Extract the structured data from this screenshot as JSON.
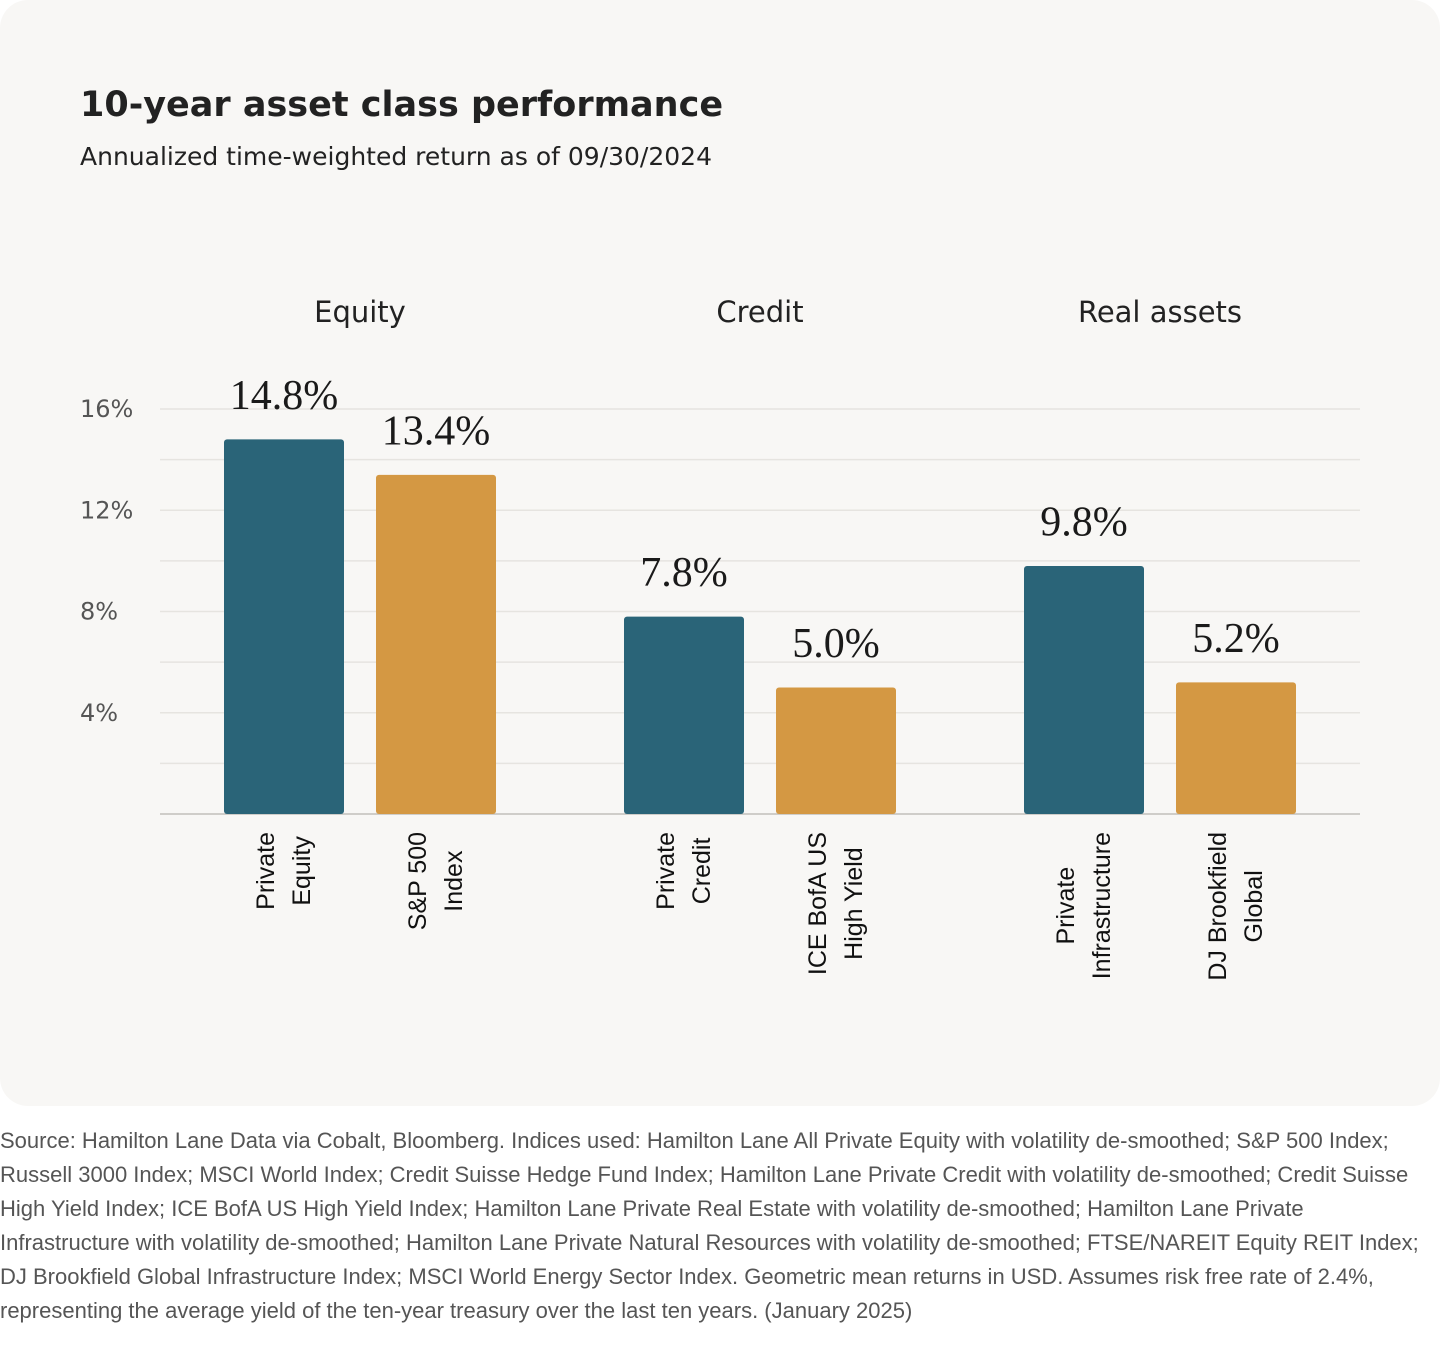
{
  "chart_data": {
    "type": "bar",
    "title": "10-year asset class performance",
    "subtitle": "Annualized time-weighted return as of 09/30/2024",
    "groups": [
      {
        "name": "Equity",
        "categories": [
          "Private\nEquity",
          "S&P 500\nIndex"
        ],
        "values": [
          14.8,
          13.4
        ],
        "value_labels": [
          "14.8%",
          "13.4%"
        ]
      },
      {
        "name": "Credit",
        "categories": [
          "Private\nCredit",
          "ICE BofA US\nHigh Yield"
        ],
        "values": [
          7.8,
          5.0
        ],
        "value_labels": [
          "7.8%",
          "5.0%"
        ]
      },
      {
        "name": "Real assets",
        "categories": [
          "Private\nInfrastructure",
          "DJ Brookfield\nGlobal"
        ],
        "values": [
          9.8,
          5.2
        ],
        "value_labels": [
          "9.8%",
          "5.2%"
        ]
      }
    ],
    "colors": [
      "#2a6478",
      "#d49843"
    ],
    "ylim": [
      0,
      16
    ],
    "yticks": [
      {
        "value": 4,
        "label": "4%"
      },
      {
        "value": 8,
        "label": "8%"
      },
      {
        "value": 12,
        "label": "12%"
      },
      {
        "value": 16,
        "label": "16%"
      }
    ],
    "minor_yticks": [
      2,
      6,
      10,
      14
    ],
    "grid": true
  },
  "footnote": "Source: Hamilton Lane Data via Cobalt, Bloomberg. Indices used: Hamilton Lane All Private Equity with volatility de-smoothed; S&P 500 Index; Russell 3000 Index; MSCI World Index; Credit Suisse Hedge Fund Index; Hamilton Lane Private Credit with volatility de-smoothed; Credit Suisse High Yield Index; ICE BofA US High Yield Index; Hamilton Lane Private Real Estate with volatility de-smoothed; Hamilton Lane Private Infrastructure with volatility de-smoothed; Hamilton Lane Private Natural Resources with volatility de-smoothed; FTSE/NAREIT Equity REIT Index; DJ Brookfield Global Infrastructure Index; MSCI World Energy Sector Index. Geometric mean returns in USD. Assumes risk free rate of 2.4%, representing the average yield of the ten-year treasury over the last ten years. (January 2025)"
}
